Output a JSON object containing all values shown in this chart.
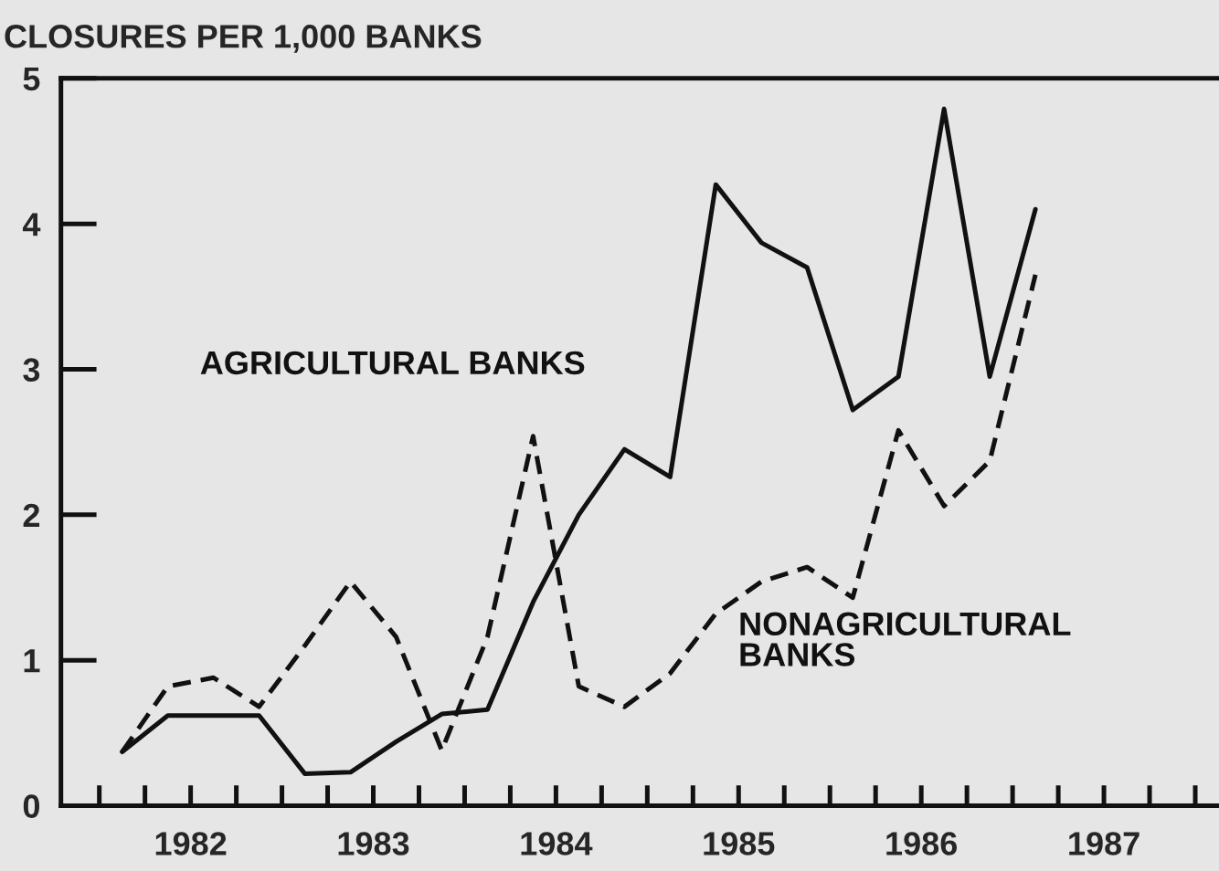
{
  "chart_data": {
    "type": "line",
    "title": "CLOSURES PER 1,000 BANKS",
    "x": [
      1982.125,
      1982.375,
      1982.625,
      1982.875,
      1983.125,
      1983.375,
      1983.625,
      1983.875,
      1984.125,
      1984.375,
      1984.625,
      1984.875,
      1985.125,
      1985.375,
      1985.625,
      1985.875,
      1986.125,
      1986.375,
      1986.625,
      1986.875,
      1987.125
    ],
    "series": [
      {
        "name": "AGRICULTURAL BANKS",
        "color": "#111111",
        "line_style": "solid",
        "values": [
          0.37,
          0.62,
          0.62,
          0.62,
          0.22,
          0.23,
          0.44,
          0.63,
          0.66,
          1.4,
          2.0,
          2.45,
          2.26,
          4.27,
          3.87,
          3.7,
          2.72,
          2.95,
          4.79,
          2.95,
          4.1
        ]
      },
      {
        "name": "NONAGRICULTURAL\nBANKS",
        "color": "#111111",
        "line_style": "dashed",
        "values": [
          0.37,
          0.82,
          0.88,
          0.68,
          1.1,
          1.54,
          1.16,
          0.38,
          1.16,
          2.54,
          0.82,
          0.68,
          0.91,
          1.32,
          1.54,
          1.64,
          1.43,
          2.58,
          2.06,
          2.37,
          3.65
        ]
      }
    ],
    "xlim": [
      1981.79,
      1988.13
    ],
    "xticks": [
      {
        "value": 1982,
        "label": null
      },
      {
        "value": 1982.25,
        "label": null
      },
      {
        "value": 1982.5,
        "label": "1982"
      },
      {
        "value": 1982.75,
        "label": null
      },
      {
        "value": 1983,
        "label": null
      },
      {
        "value": 1983.25,
        "label": null
      },
      {
        "value": 1983.5,
        "label": "1983"
      },
      {
        "value": 1983.75,
        "label": null
      },
      {
        "value": 1984,
        "label": null
      },
      {
        "value": 1984.25,
        "label": null
      },
      {
        "value": 1984.5,
        "label": "1984"
      },
      {
        "value": 1984.75,
        "label": null
      },
      {
        "value": 1985,
        "label": null
      },
      {
        "value": 1985.25,
        "label": null
      },
      {
        "value": 1985.5,
        "label": "1985"
      },
      {
        "value": 1985.75,
        "label": null
      },
      {
        "value": 1986,
        "label": null
      },
      {
        "value": 1986.25,
        "label": null
      },
      {
        "value": 1986.5,
        "label": "1986"
      },
      {
        "value": 1986.75,
        "label": null
      },
      {
        "value": 1987,
        "label": null
      },
      {
        "value": 1987.25,
        "label": null
      },
      {
        "value": 1987.5,
        "label": "1987"
      },
      {
        "value": 1987.75,
        "label": null
      },
      {
        "value": 1988,
        "label": null
      }
    ],
    "ylim": [
      0,
      5
    ],
    "yticks": [
      0,
      1,
      2,
      3,
      4,
      5
    ],
    "grid": false,
    "legend": false,
    "marker": "none"
  }
}
